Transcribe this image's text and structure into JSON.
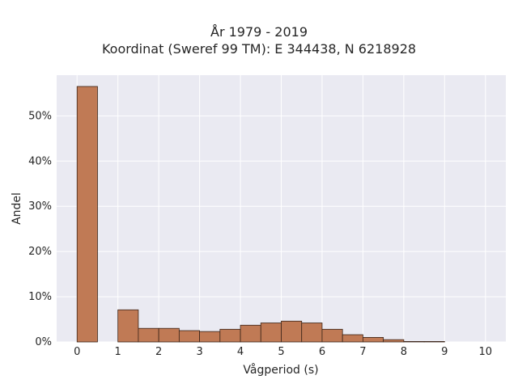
{
  "chart_data": {
    "type": "bar",
    "title": [
      "År 1979 - 2019",
      "Koordinat (Sweref 99 TM): E 344438, N 6218928"
    ],
    "xlabel": "Vågperiod (s)",
    "ylabel": "Andel",
    "xlim": [
      -0.5,
      10.5
    ],
    "ylim": [
      0,
      0.59
    ],
    "xticks": [
      0,
      1,
      2,
      3,
      4,
      5,
      6,
      7,
      8,
      9,
      10
    ],
    "yticks": [
      0,
      0.1,
      0.2,
      0.3,
      0.4,
      0.5
    ],
    "ytick_labels": [
      "0%",
      "10%",
      "20%",
      "30%",
      "40%",
      "50%"
    ],
    "bin_width": 0.5,
    "bins": [
      {
        "start": 0.0,
        "value": 0.565
      },
      {
        "start": 1.0,
        "value": 0.071
      },
      {
        "start": 1.5,
        "value": 0.03
      },
      {
        "start": 2.0,
        "value": 0.03
      },
      {
        "start": 2.5,
        "value": 0.025
      },
      {
        "start": 3.0,
        "value": 0.023
      },
      {
        "start": 3.5,
        "value": 0.028
      },
      {
        "start": 4.0,
        "value": 0.037
      },
      {
        "start": 4.5,
        "value": 0.042
      },
      {
        "start": 5.0,
        "value": 0.046
      },
      {
        "start": 5.5,
        "value": 0.042
      },
      {
        "start": 6.0,
        "value": 0.028
      },
      {
        "start": 6.5,
        "value": 0.016
      },
      {
        "start": 7.0,
        "value": 0.01
      },
      {
        "start": 7.5,
        "value": 0.005
      },
      {
        "start": 8.0,
        "value": 0.001
      },
      {
        "start": 8.5,
        "value": 0.001
      }
    ],
    "grid": true,
    "colors": {
      "bar_fill": "#c07a55",
      "bar_edge": "#3a2418",
      "plot_background": "#eaeaf2",
      "grid": "#ffffff"
    }
  }
}
